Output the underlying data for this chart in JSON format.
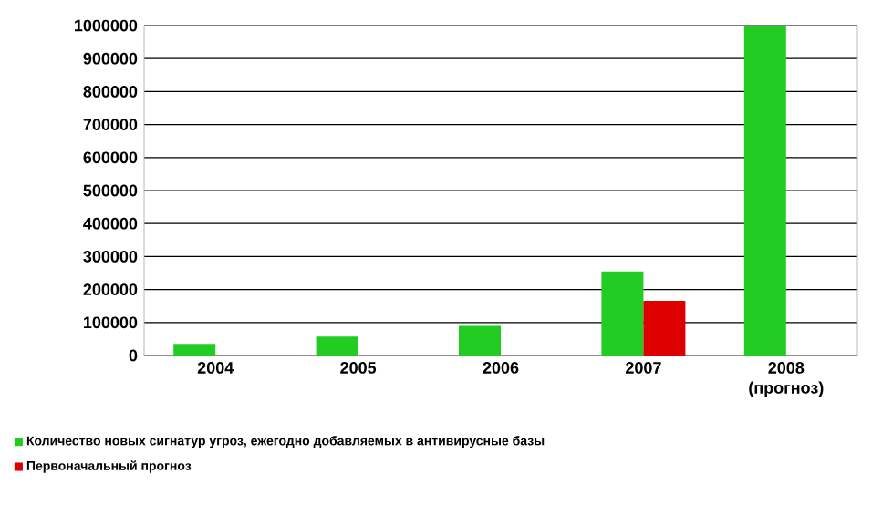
{
  "chart_data": {
    "type": "bar",
    "categories": [
      "2004",
      "2005",
      "2006",
      "2007",
      "2008 (прогноз)"
    ],
    "series": [
      {
        "name": "Количество новых сигнатур угроз, ежегодно добавляемых в антивирусные базы",
        "color": "#22cc22",
        "values": [
          35000,
          57000,
          90000,
          255000,
          1000000
        ]
      },
      {
        "name": "Первоначальный прогноз",
        "color": "#dd0000",
        "values": [
          null,
          null,
          null,
          166000,
          null
        ]
      }
    ],
    "ylim": [
      0,
      1000000
    ],
    "yticks": [
      0,
      100000,
      200000,
      300000,
      400000,
      500000,
      600000,
      700000,
      800000,
      900000,
      1000000
    ],
    "grid": "y",
    "legend": "bottom left"
  }
}
